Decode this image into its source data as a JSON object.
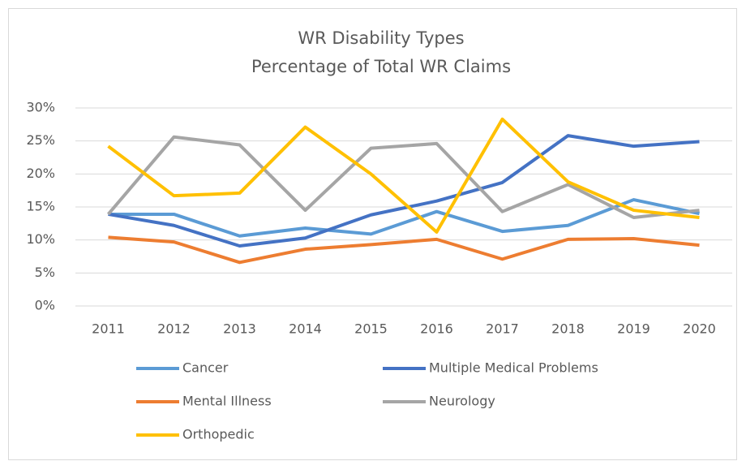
{
  "chart_data": {
    "type": "line",
    "title": "WR Disability Types",
    "subtitle": "Percentage of Total WR Claims",
    "categories": [
      "2011",
      "2012",
      "2013",
      "2014",
      "2015",
      "2016",
      "2017",
      "2018",
      "2019",
      "2020"
    ],
    "series": [
      {
        "name": "Cancer",
        "color": "#5b9bd5",
        "values": [
          13.9,
          13.9,
          10.6,
          11.8,
          10.9,
          14.3,
          11.3,
          12.2,
          16.1,
          14.0
        ]
      },
      {
        "name": "Multiple Medical Problems",
        "color": "#4472c4",
        "values": [
          13.9,
          12.2,
          9.1,
          10.3,
          13.8,
          15.9,
          18.7,
          25.8,
          24.2,
          24.9
        ]
      },
      {
        "name": "Mental Illness",
        "color": "#ed7d31",
        "values": [
          10.4,
          9.7,
          6.6,
          8.6,
          9.3,
          10.1,
          7.1,
          10.1,
          10.2,
          9.2
        ]
      },
      {
        "name": "Neurology",
        "color": "#a5a5a5",
        "values": [
          13.9,
          25.6,
          24.4,
          14.5,
          23.9,
          24.6,
          14.3,
          18.4,
          13.4,
          14.5
        ]
      },
      {
        "name": "Orthopedic",
        "color": "#ffc000",
        "values": [
          24.2,
          16.7,
          17.1,
          27.1,
          20.0,
          11.2,
          28.3,
          18.8,
          14.5,
          13.4
        ]
      }
    ],
    "ylim": [
      0,
      30
    ],
    "yticks": [
      {
        "value": 0,
        "label": "0%"
      },
      {
        "value": 5,
        "label": "5%"
      },
      {
        "value": 10,
        "label": "10%"
      },
      {
        "value": 15,
        "label": "15%"
      },
      {
        "value": 20,
        "label": "20%"
      },
      {
        "value": 25,
        "label": "25%"
      },
      {
        "value": 30,
        "label": "30%"
      }
    ],
    "grid": true,
    "legend": "bottom"
  }
}
